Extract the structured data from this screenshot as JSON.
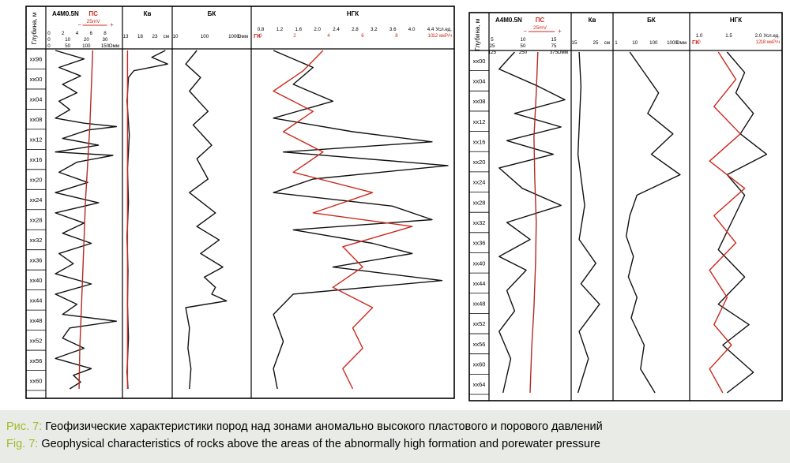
{
  "colors": {
    "ps_curve": "#b22a22",
    "gk_curve": "#cc2a1e",
    "ngk_curve": "#111111",
    "caption_prefix": "#9bbd2a",
    "caption_bg": "#e9ebe7"
  },
  "caption": {
    "ru_prefix": "Рис. 7:",
    "ru_text": "Геофизические характеристики пород над зонами аномально высокого пластового и порового давлений",
    "en_prefix": "Fig. 7:",
    "en_text": "Geophysical characteristics of rocks above the areas of the abnormally high formation and porewater pressure"
  },
  "chart_data": [
    {
      "type": "line",
      "depth_axis_label": "Глубина, м",
      "depth_ticks": [
        "xx96",
        "xx00",
        "xx04",
        "xx08",
        "xx12",
        "xx16",
        "xx20",
        "xx24",
        "xx28",
        "xx32",
        "xx36",
        "xx40",
        "xx44",
        "xx48",
        "xx52",
        "xx56",
        "xx60"
      ],
      "tracks": [
        {
          "name": "A4M0.5N",
          "ps": {
            "label": "ПС",
            "scale": "25mV",
            "minus": "−",
            "plus": "+"
          },
          "scale_rows": [
            [
              "0",
              "2",
              "4",
              "6",
              "8"
            ],
            [
              "0",
              "10",
              "20",
              "30"
            ],
            [
              "0",
              "50",
              "100",
              "150"
            ]
          ],
          "unit": "Омм",
          "series": [
            {
              "name": "A4M0.5N",
              "color": "#111111",
              "x": [
                0.1,
                0.5,
                0.15,
                0.45,
                0.2,
                0.4,
                0.15,
                0.3,
                0.1,
                0.5,
                0.95,
                0.55,
                0.2,
                0.7,
                0.1,
                0.9,
                0.4,
                0.15,
                0.55,
                0.1,
                0.7,
                0.1,
                0.5,
                0.2,
                0.6,
                0.15,
                0.35,
                0.1,
                0.6,
                0.1,
                0.4,
                0.2,
                0.95,
                0.3,
                0.2,
                0.5,
                0.1,
                0.6,
                0.35,
                0.45,
                0.3
              ],
              "y": [
                0,
                0.025,
                0.05,
                0.075,
                0.1,
                0.125,
                0.15,
                0.175,
                0.2,
                0.215,
                0.225,
                0.235,
                0.26,
                0.28,
                0.3,
                0.31,
                0.33,
                0.36,
                0.39,
                0.42,
                0.45,
                0.48,
                0.51,
                0.54,
                0.57,
                0.6,
                0.63,
                0.66,
                0.69,
                0.72,
                0.75,
                0.78,
                0.8,
                0.82,
                0.85,
                0.88,
                0.91,
                0.94,
                0.96,
                0.98,
                1.0
              ]
            },
            {
              "name": "ПС",
              "color": "#b22a22",
              "x": [
                0.62,
                0.6,
                0.58,
                0.55,
                0.52,
                0.5,
                0.48,
                0.46,
                0.44,
                0.43
              ],
              "y": [
                0,
                0.11,
                0.22,
                0.33,
                0.44,
                0.55,
                0.66,
                0.77,
                0.88,
                1.0
              ]
            }
          ]
        },
        {
          "name": "Кв",
          "scale_rows": [
            [
              "13",
              "18",
              "23"
            ]
          ],
          "unit": "см",
          "series": [
            {
              "name": "Кв",
              "color": "#111111",
              "x": [
                0.9,
                0.6,
                0.95,
                0.2,
                0.08,
                0.05,
                0.1,
                0.06,
                0.08,
                0.05,
                0.07,
                0.06,
                0.08,
                0.05,
                0.07
              ],
              "y": [
                0,
                0.02,
                0.04,
                0.06,
                0.08,
                0.15,
                0.25,
                0.35,
                0.45,
                0.55,
                0.65,
                0.75,
                0.85,
                0.95,
                1.0
              ]
            },
            {
              "name": "Кв2",
              "color": "#cc2a1e",
              "x": [
                0.06,
                0.06,
                0.06,
                0.06
              ],
              "y": [
                0,
                0.33,
                0.66,
                1.0
              ]
            }
          ]
        },
        {
          "name": "БК",
          "scale_rows": [
            [
              "10",
              "100",
              "1000"
            ]
          ],
          "unit": "Омм",
          "series": [
            {
              "name": "БК",
              "color": "#111111",
              "x": [
                0.3,
                0.15,
                0.35,
                0.2,
                0.45,
                0.25,
                0.5,
                0.3,
                0.45,
                0.2,
                0.55,
                0.3,
                0.6,
                0.35,
                0.65,
                0.4,
                0.55,
                0.5,
                0.7,
                0.15,
                0.2,
                0.18,
                0.22,
                0.2
              ],
              "y": [
                0,
                0.04,
                0.08,
                0.12,
                0.18,
                0.22,
                0.28,
                0.32,
                0.38,
                0.42,
                0.48,
                0.52,
                0.56,
                0.6,
                0.64,
                0.67,
                0.7,
                0.72,
                0.74,
                0.76,
                0.82,
                0.88,
                0.94,
                1.0
              ]
            }
          ]
        },
        {
          "name": "НГК",
          "sub": "ГК",
          "scale_rows": [
            [
              "0.8",
              "1.2",
              "1.6",
              "2.0",
              "2.4",
              "2.8",
              "3.2",
              "3.6",
              "4.0",
              "4.4"
            ],
            [
              "0",
              "2",
              "4",
              "6",
              "8",
              "10"
            ]
          ],
          "unit_top": "Усл.ед.",
          "unit_bottom": "12 мкР/ч",
          "series": [
            {
              "name": "НГК",
              "color": "#111111",
              "x": [
                0.1,
                0.3,
                0.2,
                0.4,
                0.1,
                0.5,
                0.9,
                0.15,
                0.98,
                0.3,
                0.1,
                0.7,
                0.9,
                0.2,
                0.6,
                0.8,
                0.4,
                0.95,
                0.2,
                0.1,
                0.15,
                0.1,
                0.12
              ],
              "y": [
                0,
                0.05,
                0.1,
                0.15,
                0.2,
                0.24,
                0.27,
                0.3,
                0.34,
                0.38,
                0.42,
                0.46,
                0.5,
                0.53,
                0.57,
                0.6,
                0.64,
                0.68,
                0.72,
                0.78,
                0.86,
                0.94,
                1.0
              ]
            },
            {
              "name": "ГК",
              "color": "#cc2a1e",
              "x": [
                0.35,
                0.25,
                0.1,
                0.3,
                0.15,
                0.35,
                0.2,
                0.6,
                0.3,
                0.8,
                0.45,
                0.55,
                0.4,
                0.6,
                0.5,
                0.55,
                0.45,
                0.5
              ],
              "y": [
                0,
                0.06,
                0.12,
                0.18,
                0.24,
                0.3,
                0.36,
                0.42,
                0.48,
                0.52,
                0.58,
                0.64,
                0.7,
                0.76,
                0.82,
                0.88,
                0.94,
                1.0
              ]
            }
          ]
        }
      ]
    },
    {
      "type": "line",
      "depth_axis_label": "Глубина, м",
      "depth_ticks": [
        "xx00",
        "xx04",
        "xx08",
        "xx12",
        "xx16",
        "xx20",
        "xx24",
        "xx28",
        "xx32",
        "xx36",
        "xx40",
        "xx44",
        "xx48",
        "xx52",
        "xx56",
        "xx60",
        "xx64"
      ],
      "tracks": [
        {
          "name": "A4M0.5N",
          "ps": {
            "label": "ПС",
            "scale": "25mV",
            "minus": "−",
            "plus": "+"
          },
          "scale_rows": [
            [
              "5",
              "10",
              "15"
            ],
            [
              "25",
              "50",
              "75"
            ],
            [
              "125",
              "250",
              "375"
            ]
          ],
          "unit": "Омм",
          "series": [
            {
              "name": "A4M0.5N",
              "color": "#111111",
              "x": [
                0.3,
                0.1,
                0.6,
                0.95,
                0.3,
                0.9,
                0.2,
                0.8,
                0.1,
                0.4,
                0.9,
                0.2,
                0.5,
                0.1,
                0.45,
                0.2,
                0.3,
                0.1,
                0.25,
                0.15
              ],
              "y": [
                0,
                0.05,
                0.1,
                0.14,
                0.18,
                0.22,
                0.26,
                0.3,
                0.34,
                0.4,
                0.45,
                0.5,
                0.55,
                0.6,
                0.64,
                0.7,
                0.76,
                0.82,
                0.9,
                1.0
              ]
            },
            {
              "name": "ПС",
              "color": "#b22a22",
              "x": [
                0.6,
                0.58,
                0.55,
                0.56,
                0.58,
                0.57,
                0.55,
                0.52,
                0.5
              ],
              "y": [
                0,
                0.12,
                0.25,
                0.37,
                0.5,
                0.62,
                0.75,
                0.87,
                1.0
              ]
            }
          ]
        },
        {
          "name": "Кв",
          "scale_rows": [
            [
              "15",
              "25"
            ]
          ],
          "unit": "см",
          "series": [
            {
              "name": "Кв",
              "color": "#111111",
              "x": [
                0.15,
                0.2,
                0.12,
                0.3,
                0.15,
                0.6,
                0.2,
                0.7,
                0.15,
                0.4,
                0.12
              ],
              "y": [
                0,
                0.1,
                0.3,
                0.45,
                0.55,
                0.62,
                0.68,
                0.74,
                0.82,
                0.9,
                1.0
              ]
            }
          ]
        },
        {
          "name": "БК",
          "scale_rows": [
            [
              "1",
              "10",
              "100",
              "1000"
            ]
          ],
          "unit": "Омм",
          "series": [
            {
              "name": "БК",
              "color": "#111111",
              "x": [
                0.2,
                0.4,
                0.6,
                0.45,
                0.8,
                0.5,
                0.9,
                0.3,
                0.2,
                0.15,
                0.25,
                0.18,
                0.3,
                0.22,
                0.4,
                0.35,
                0.55
              ],
              "y": [
                0,
                0.06,
                0.12,
                0.18,
                0.24,
                0.3,
                0.36,
                0.42,
                0.48,
                0.54,
                0.6,
                0.66,
                0.72,
                0.78,
                0.86,
                0.93,
                1.0
              ]
            }
          ]
        },
        {
          "name": "НГК",
          "sub": "ГК",
          "scale_rows": [
            [
              "1.0",
              "1.5",
              "2.0"
            ],
            [
              "0",
              "12"
            ]
          ],
          "unit_top": "Усл.ед.",
          "unit_bottom": "18 мкР/ч",
          "series": [
            {
              "name": "НГК",
              "color": "#111111",
              "x": [
                0.4,
                0.6,
                0.5,
                0.7,
                0.55,
                0.85,
                0.4,
                0.6,
                0.45,
                0.3,
                0.6,
                0.3,
                0.65,
                0.35,
                0.7,
                0.4
              ],
              "y": [
                0,
                0.06,
                0.12,
                0.18,
                0.24,
                0.3,
                0.36,
                0.42,
                0.5,
                0.58,
                0.66,
                0.74,
                0.8,
                0.86,
                0.94,
                1.0
              ]
            },
            {
              "name": "ГК",
              "color": "#cc2a1e",
              "x": [
                0.3,
                0.5,
                0.25,
                0.55,
                0.2,
                0.6,
                0.25,
                0.5,
                0.2,
                0.4,
                0.25,
                0.45,
                0.2,
                0.35
              ],
              "y": [
                0,
                0.08,
                0.16,
                0.24,
                0.32,
                0.4,
                0.48,
                0.56,
                0.64,
                0.72,
                0.8,
                0.86,
                0.93,
                1.0
              ]
            }
          ]
        }
      ]
    }
  ]
}
